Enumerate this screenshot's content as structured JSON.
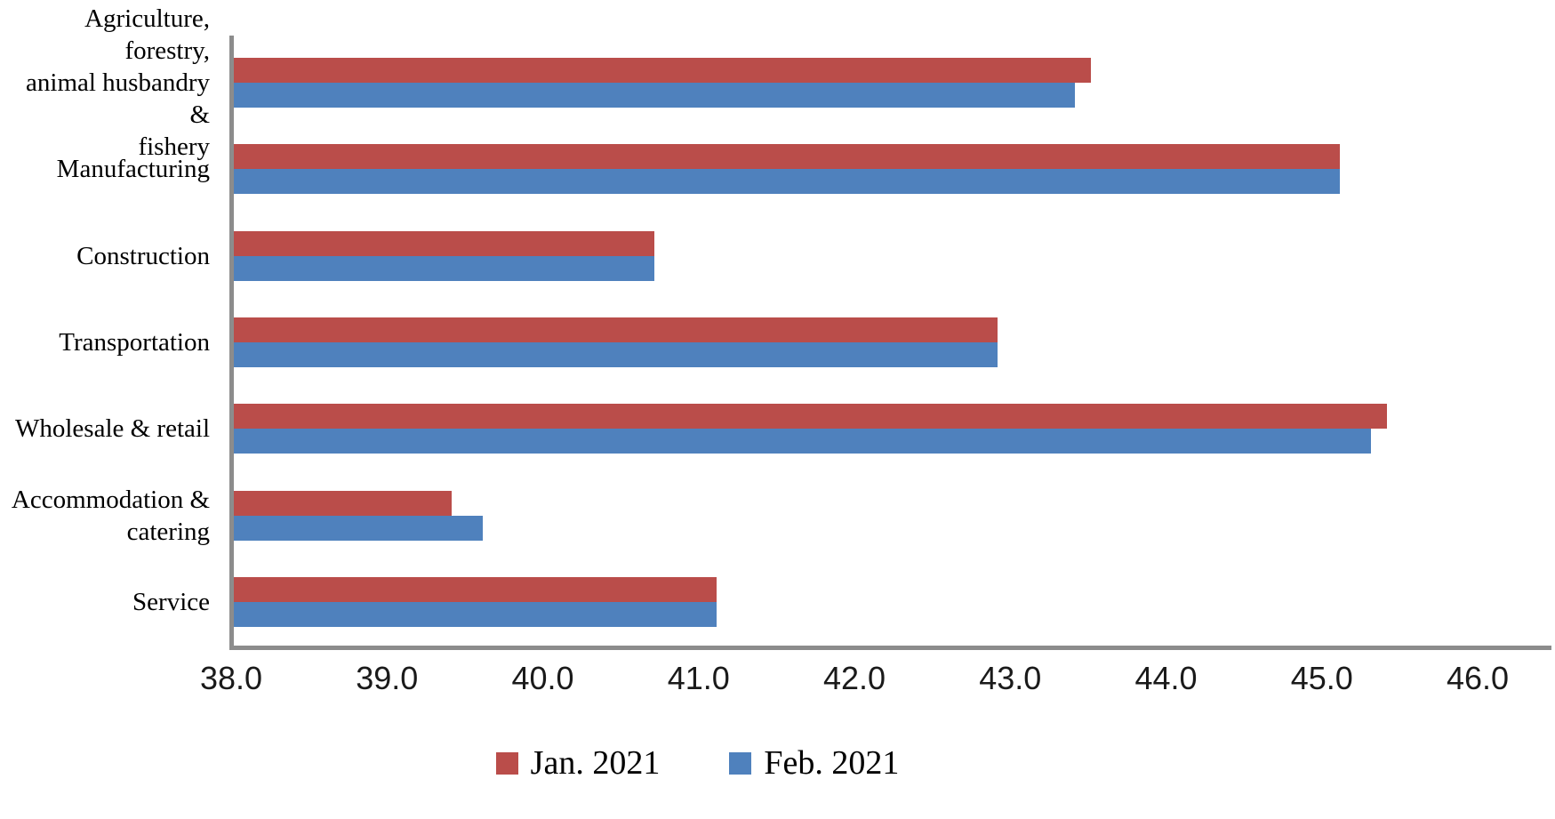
{
  "chart_data": {
    "type": "bar",
    "orientation": "horizontal",
    "title": "",
    "xlabel": "",
    "ylabel": "",
    "categories": [
      "Agriculture, forestry, animal husbandry & fishery",
      "Manufacturing",
      "Construction",
      "Transportation",
      "Wholesale & retail",
      "Accommodation & catering",
      "Service"
    ],
    "label_lines": [
      [
        "Agriculture, forestry,",
        "animal husbandry &",
        "fishery"
      ],
      [
        "Manufacturing"
      ],
      [
        "Construction"
      ],
      [
        "Transportation"
      ],
      [
        "Wholesale & retail"
      ],
      [
        "Accommodation &",
        "catering"
      ],
      [
        "Service"
      ]
    ],
    "series": [
      {
        "name": "Jan. 2021",
        "color": "#BA4D4A",
        "values": [
          43.5,
          45.1,
          40.7,
          42.9,
          45.4,
          39.4,
          41.1
        ]
      },
      {
        "name": "Feb. 2021",
        "color": "#4F81BD",
        "values": [
          43.4,
          45.1,
          40.7,
          42.9,
          45.3,
          39.6,
          41.1
        ]
      }
    ],
    "xlim": [
      38.0,
      46.0
    ],
    "x_tick_labels": [
      "38.0",
      "39.0",
      "40.0",
      "41.0",
      "42.0",
      "43.0",
      "44.0",
      "45.0",
      "46.0"
    ],
    "x_tick_step": 1.0,
    "grid": false,
    "legend_position": "bottom",
    "axis_color": "#8C8C8C"
  }
}
